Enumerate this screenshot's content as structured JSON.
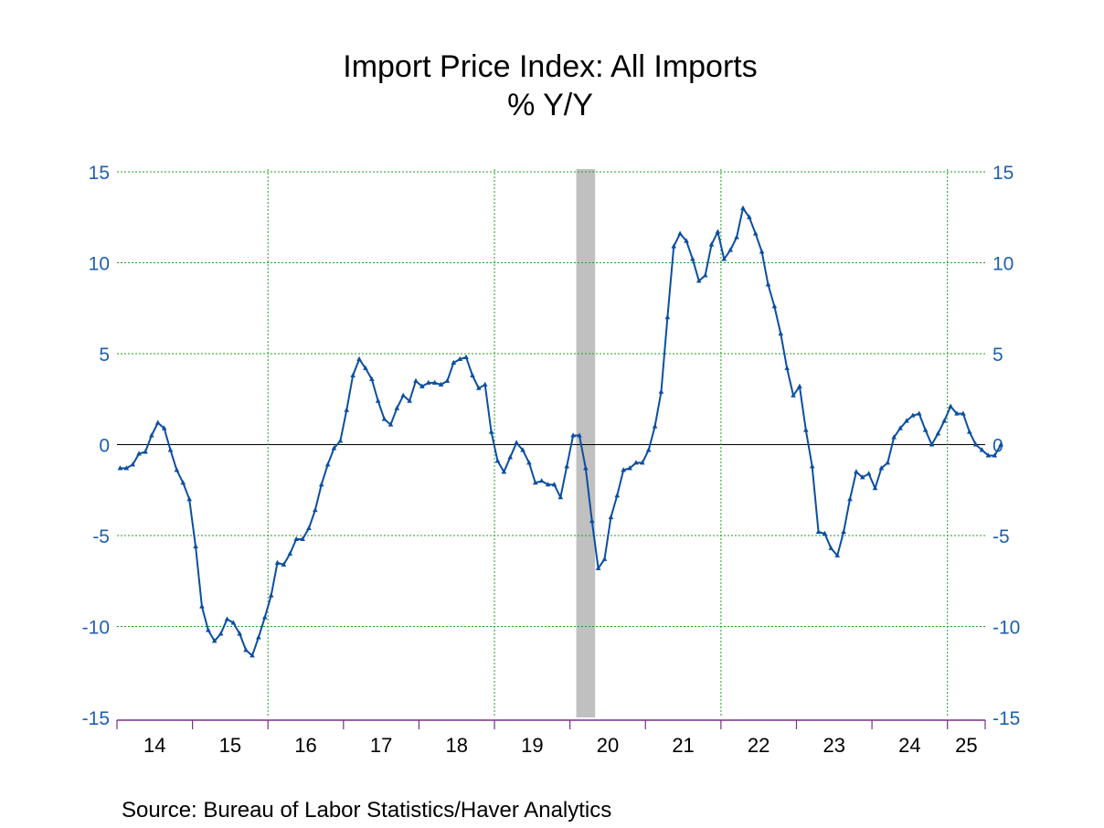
{
  "chart_data": {
    "type": "line",
    "title": "Import Price Index: All Imports",
    "subtitle": "% Y/Y",
    "source": "Source:  Bureau of Labor Statistics/Haver Analytics",
    "x_start": "2014-01",
    "x_end": "2025-06",
    "ylim": [
      -15,
      15
    ],
    "y_ticks": [
      "15",
      "10",
      "5",
      "0",
      "-5",
      "-10",
      "-15"
    ],
    "x_tick_labels": [
      "14",
      "15",
      "16",
      "17",
      "18",
      "19",
      "20",
      "21",
      "22",
      "23",
      "24",
      "25"
    ],
    "grid": true,
    "recession": {
      "start": "2020-02",
      "end": "2020-04"
    },
    "colors": {
      "line": "#0b4ea2",
      "axis_text": "#1f5fb0",
      "grid": "#1fa21f",
      "bottom_axis": "#7b2d8b",
      "recession": "#c0c0c0"
    },
    "series": [
      {
        "values": [
          -1.3,
          -1.3,
          -1.1,
          -0.5,
          -0.4,
          0.5,
          1.2,
          0.9,
          -0.3,
          -1.4,
          -2.1,
          -3.0,
          -5.6,
          -8.9,
          -10.2,
          -10.8,
          -10.4,
          -9.6,
          -9.8,
          -10.4,
          -11.3,
          -11.6,
          -10.6,
          -9.5,
          -8.3,
          -6.5,
          -6.6,
          -6.0,
          -5.2,
          -5.2,
          -4.6,
          -3.6,
          -2.2,
          -1.1,
          -0.2,
          0.2,
          1.9,
          3.8,
          4.7,
          4.2,
          3.6,
          2.4,
          1.4,
          1.1,
          2.0,
          2.7,
          2.4,
          3.5,
          3.2,
          3.4,
          3.4,
          3.3,
          3.5,
          4.5,
          4.7,
          4.8,
          3.8,
          3.1,
          3.3,
          0.7,
          -0.9,
          -1.5,
          -0.7,
          0.1,
          -0.3,
          -1.0,
          -2.1,
          -2.0,
          -2.2,
          -2.2,
          -2.9,
          -1.2,
          0.5,
          0.5,
          -1.3,
          -4.2,
          -6.8,
          -6.3,
          -4.0,
          -2.8,
          -1.4,
          -1.3,
          -1.0,
          -1.0,
          -0.3,
          1.0,
          2.9,
          7.0,
          10.9,
          11.6,
          11.2,
          10.2,
          9.0,
          9.3,
          11.0,
          11.7,
          10.2,
          10.7,
          11.4,
          13.0,
          12.5,
          11.6,
          10.6,
          8.8,
          7.6,
          6.1,
          4.2,
          2.7,
          3.2,
          0.8,
          -1.2,
          -4.8,
          -4.9,
          -5.7,
          -6.1,
          -4.8,
          -3.0,
          -1.5,
          -1.8,
          -1.6,
          -2.4,
          -1.3,
          -1.0,
          0.4,
          0.9,
          1.3,
          1.6,
          1.7,
          0.8,
          0.0,
          0.6,
          1.3,
          2.1,
          1.7,
          1.7,
          0.7,
          0.0,
          -0.3,
          -0.6,
          -0.6,
          0.0
        ]
      }
    ]
  }
}
